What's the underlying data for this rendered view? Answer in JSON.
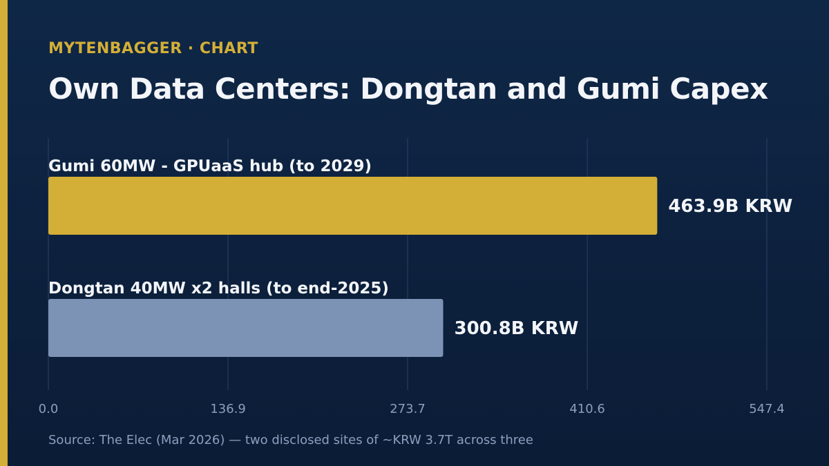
{
  "header": {
    "kicker": "MYTENBAGGER · CHART",
    "title": "Own Data Centers: Dongtan and Gumi Capex"
  },
  "footer": {
    "source": "Source: The Elec (Mar 2026) — two disclosed sites of ~KRW 3.7T across three"
  },
  "colors": {
    "accent": "#d4af37",
    "bar_primary": "#d4af37",
    "bar_secondary": "#7d93b5",
    "background": "#0f2747",
    "text": "#f3f5f9",
    "muted": "#8d9fbd"
  },
  "chart_data": {
    "type": "bar",
    "orientation": "horizontal",
    "categories": [
      "Gumi 60MW - GPUaaS hub (to 2029)",
      "Dongtan 40MW x2 halls (to end-2025)"
    ],
    "values": [
      463.9,
      300.8
    ],
    "value_labels": [
      "463.9B KRW",
      "300.8B KRW"
    ],
    "bar_colors": [
      "#d4af37",
      "#7d93b5"
    ],
    "xlim": [
      0,
      547.4
    ],
    "x_ticks": [
      "0.0",
      "136.9",
      "273.7",
      "410.6",
      "547.4"
    ],
    "grid": true
  }
}
